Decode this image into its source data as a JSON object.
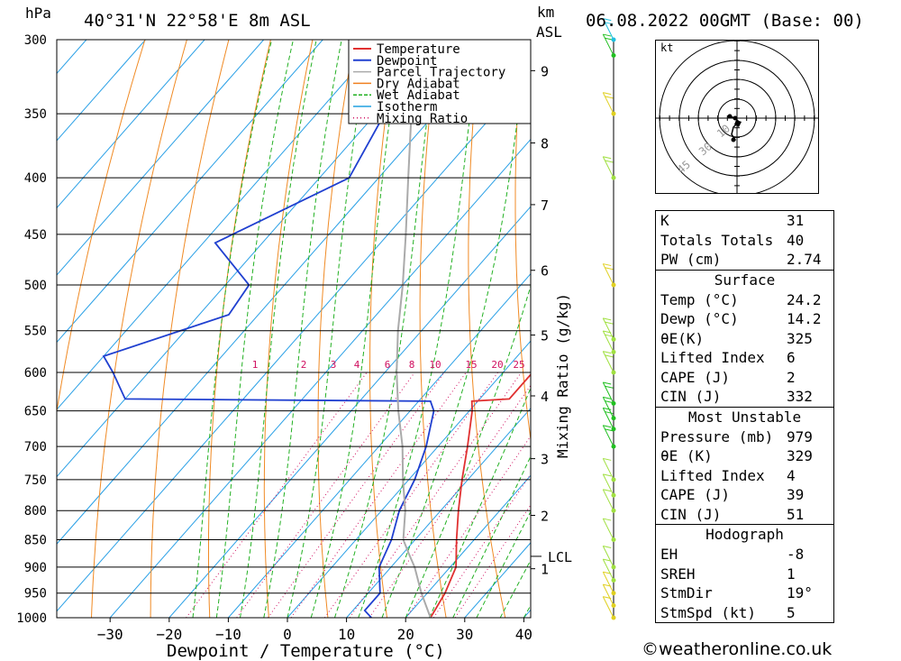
{
  "header": {
    "location": "40°31'N 22°58'E 8m ASL",
    "datetime": "06.08.2022 00GMT (Base: 00)",
    "hpa_label": "hPa",
    "km_label": "km",
    "asl_label": "ASL"
  },
  "chart_data": {
    "type": "line",
    "title": "40°31'N 22°58'E 8m ASL",
    "xlabel": "Dewpoint / Temperature (°C)",
    "ylabel": "hPa",
    "right_axis_label": "Mixing Ratio (g/kg)",
    "xlim": [
      -40,
      40
    ],
    "ylim": [
      1000,
      300
    ],
    "x_ticks": [
      "−30",
      "−20",
      "−10",
      "0",
      "10",
      "20",
      "30",
      "40"
    ],
    "pressure_levels": [
      300,
      350,
      400,
      450,
      500,
      550,
      600,
      650,
      700,
      750,
      800,
      850,
      900,
      950,
      1000
    ],
    "km_ticks": [
      {
        "label": "9",
        "p": 320
      },
      {
        "label": "8",
        "p": 372
      },
      {
        "label": "7",
        "p": 423
      },
      {
        "label": "6",
        "p": 485
      },
      {
        "label": "5",
        "p": 555
      },
      {
        "label": "4",
        "p": 630
      },
      {
        "label": "3",
        "p": 718
      },
      {
        "label": "2",
        "p": 808
      },
      {
        "label": "1",
        "p": 903
      }
    ],
    "lcl": {
      "label": "LCL",
      "p": 880
    },
    "mixing_ratio_labels": [
      "1",
      "2",
      "3",
      "4",
      "6",
      "8",
      "10",
      "15",
      "20",
      "25"
    ],
    "mixing_ratio_values": [
      1,
      2,
      3,
      4,
      6,
      8,
      10,
      15,
      20,
      25
    ],
    "series": [
      {
        "name": "Temperature",
        "color": "#e03030",
        "points": [
          [
            24.2,
            1000
          ],
          [
            23,
            950
          ],
          [
            21,
            900
          ],
          [
            17,
            850
          ],
          [
            13,
            800
          ],
          [
            9,
            750
          ],
          [
            5,
            700
          ],
          [
            0.5,
            650
          ],
          [
            -1,
            637
          ],
          [
            5,
            634
          ],
          [
            5,
            600
          ],
          [
            3,
            560
          ],
          [
            -2,
            520
          ],
          [
            -6,
            480
          ],
          [
            -11,
            440
          ],
          [
            -20,
            400
          ],
          [
            -28,
            350
          ],
          [
            -36,
            307
          ],
          [
            -40,
            300
          ]
        ]
      },
      {
        "name": "Dewpoint",
        "color": "#2040d0",
        "points": [
          [
            14.2,
            1000
          ],
          [
            12,
            985
          ],
          [
            12,
            950
          ],
          [
            8,
            900
          ],
          [
            6,
            850
          ],
          [
            3,
            800
          ],
          [
            1,
            750
          ],
          [
            -2,
            700
          ],
          [
            -6,
            650
          ],
          [
            -8,
            637
          ],
          [
            -60,
            634
          ],
          [
            -66,
            600
          ],
          [
            -70,
            580
          ],
          [
            -55,
            532
          ],
          [
            -56,
            500
          ],
          [
            -68,
            458
          ],
          [
            -55,
            400
          ],
          [
            -62,
            307
          ],
          [
            -64,
            300
          ]
        ]
      },
      {
        "name": "Parcel Trajectory",
        "color": "#aaaaaa",
        "points": [
          [
            24.2,
            1000
          ],
          [
            19,
            950
          ],
          [
            14,
            900
          ],
          [
            11,
            875
          ],
          [
            8,
            850
          ],
          [
            4,
            800
          ],
          [
            -1,
            750
          ],
          [
            -6,
            700
          ],
          [
            -12,
            650
          ],
          [
            -18,
            600
          ],
          [
            -24,
            550
          ],
          [
            -30,
            500
          ],
          [
            -37,
            450
          ],
          [
            -45,
            400
          ],
          [
            -54,
            350
          ],
          [
            -65,
            300
          ]
        ]
      }
    ],
    "legend": [
      "Temperature",
      "Dewpoint",
      "Parcel Trajectory",
      "Dry Adiabat",
      "Wet Adiabat",
      "Isotherm",
      "Mixing Ratio"
    ],
    "legend_colors": [
      "#e03030",
      "#2040d0",
      "#aaaaaa",
      "#f08020",
      "#20b020",
      "#20a0e0",
      "#d01060"
    ],
    "legend_position": "top-right",
    "wind_barbs": [
      {
        "p": 1000,
        "speed_kt": 5,
        "color": "#e0d020"
      },
      {
        "p": 975,
        "speed_kt": 5,
        "color": "#e0d020"
      },
      {
        "p": 950,
        "speed_kt": 5,
        "color": "#e0d020"
      },
      {
        "p": 925,
        "speed_kt": 10,
        "color": "#a0e040"
      },
      {
        "p": 900,
        "speed_kt": 10,
        "color": "#a0e040"
      },
      {
        "p": 850,
        "speed_kt": 10,
        "color": "#a0e040"
      },
      {
        "p": 800,
        "speed_kt": 10,
        "color": "#a0e040"
      },
      {
        "p": 775,
        "speed_kt": 10,
        "color": "#a0e040"
      },
      {
        "p": 750,
        "speed_kt": 10,
        "color": "#a0e040"
      },
      {
        "p": 700,
        "speed_kt": 15,
        "color": "#20c020"
      },
      {
        "p": 675,
        "speed_kt": 15,
        "color": "#20c020"
      },
      {
        "p": 660,
        "speed_kt": 20,
        "color": "#20c020"
      },
      {
        "p": 640,
        "speed_kt": 20,
        "color": "#20c020"
      },
      {
        "p": 600,
        "speed_kt": 15,
        "color": "#a0e040"
      },
      {
        "p": 575,
        "speed_kt": 15,
        "color": "#a0e040"
      },
      {
        "p": 560,
        "speed_kt": 15,
        "color": "#a0e040"
      },
      {
        "p": 500,
        "speed_kt": 15,
        "color": "#e0d020"
      },
      {
        "p": 400,
        "speed_kt": 20,
        "color": "#a0e040"
      },
      {
        "p": 350,
        "speed_kt": 20,
        "color": "#e0d020"
      },
      {
        "p": 310,
        "speed_kt": 20,
        "color": "#20c020"
      },
      {
        "p": 300,
        "speed_kt": 20,
        "color": "#20c0e0"
      }
    ]
  },
  "hodograph": {
    "unit_label": "kt",
    "ring_labels": [
      "10",
      "30",
      "45"
    ]
  },
  "indices": [
    {
      "label": "K",
      "value": "31"
    },
    {
      "label": "Totals Totals",
      "value": "40"
    },
    {
      "label": "PW (cm)",
      "value": "2.74"
    }
  ],
  "surface": {
    "title": "Surface",
    "rows": [
      {
        "label": "Temp (°C)",
        "value": "24.2"
      },
      {
        "label": "Dewp (°C)",
        "value": "14.2"
      },
      {
        "label": "θE(K)",
        "value": "325"
      },
      {
        "label": "Lifted Index",
        "value": "6"
      },
      {
        "label": "CAPE (J)",
        "value": "2"
      },
      {
        "label": "CIN (J)",
        "value": "332"
      }
    ]
  },
  "most_unstable": {
    "title": "Most Unstable",
    "rows": [
      {
        "label": "Pressure (mb)",
        "value": "979"
      },
      {
        "label": "θE (K)",
        "value": "329"
      },
      {
        "label": "Lifted Index",
        "value": "4"
      },
      {
        "label": "CAPE (J)",
        "value": "39"
      },
      {
        "label": "CIN (J)",
        "value": "51"
      }
    ]
  },
  "hodo_table": {
    "title": "Hodograph",
    "rows": [
      {
        "label": "EH",
        "value": "-8"
      },
      {
        "label": "SREH",
        "value": "1"
      },
      {
        "label": "StmDir",
        "value": "19°"
      },
      {
        "label": "StmSpd (kt)",
        "value": "5"
      }
    ]
  },
  "footer": "©weatheronline.co.uk"
}
